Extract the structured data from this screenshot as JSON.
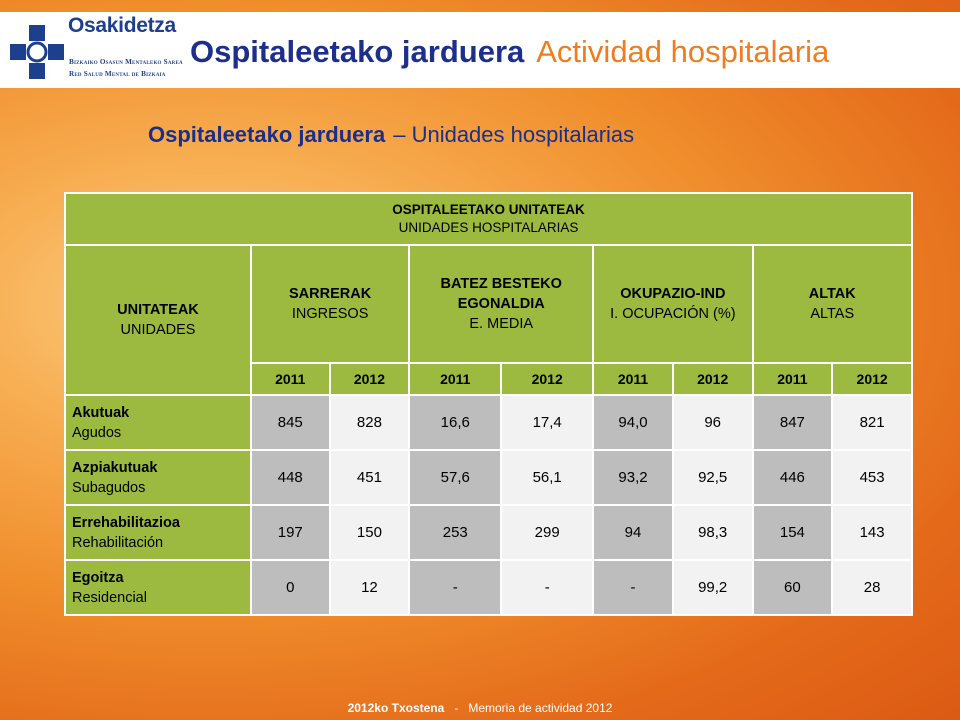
{
  "header": {
    "brand": "Osakidetza",
    "org_line1": "Bizkaiko Osasun Mentaleko Sarea",
    "org_line2": "Red Salud Mental de Bizkaia",
    "title_eu": "Ospitaleetako jarduera",
    "title_es": "Actividad hospitalaria",
    "brand_color": "#1d3f8e",
    "accent_color": "#ef7c1e"
  },
  "subtitle": {
    "eu": "Ospitaleetako jarduera",
    "es": "– Unidades hospitalarias"
  },
  "table": {
    "title_eu": "OSPITALEETAKO UNITATEAK",
    "title_es": "UNIDADES HOSPITALARIAS",
    "unit_header": {
      "eu": "UNITATEAK",
      "es": "UNIDADES"
    },
    "groups": [
      {
        "eu": "SARRERAK",
        "es": "INGRESOS"
      },
      {
        "eu": "BATEZ BESTEKO EGONALDIA",
        "es": "E. MEDIA"
      },
      {
        "eu": "OKUPAZIO-IND",
        "es": "I. OCUPACIÓN (%)"
      },
      {
        "eu": "ALTAK",
        "es": "ALTAS"
      }
    ],
    "years": [
      "2011",
      "2012",
      "2011",
      "2012",
      "2011",
      "2012",
      "2011",
      "2012"
    ],
    "rows": [
      {
        "eu": "Akutuak",
        "es": "Agudos",
        "values": [
          "845",
          "828",
          "16,6",
          "17,4",
          "94,0",
          "96",
          "847",
          "821"
        ]
      },
      {
        "eu": "Azpiakutuak",
        "es": "Subagudos",
        "values": [
          "448",
          "451",
          "57,6",
          "56,1",
          "93,2",
          "92,5",
          "446",
          "453"
        ]
      },
      {
        "eu": "Errehabilitazioa",
        "es": "Rehabilitación",
        "values": [
          "197",
          "150",
          "253",
          "299",
          "94",
          "98,3",
          "154",
          "143"
        ]
      },
      {
        "eu": "Egoitza",
        "es": "Residencial",
        "values": [
          "0",
          "12",
          "-",
          "-",
          "-",
          "99,2",
          "60",
          "28"
        ]
      }
    ]
  },
  "footer": {
    "eu": "2012ko Txostena",
    "sep": "-",
    "es": "Memoria de actividad 2012"
  }
}
